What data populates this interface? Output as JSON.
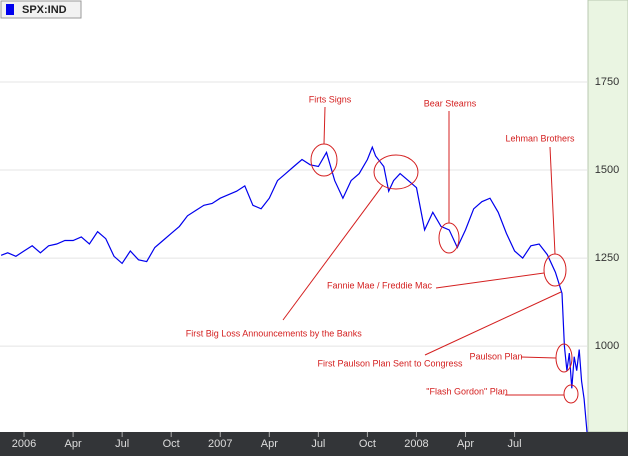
{
  "chart_data": {
    "type": "line",
    "series": [
      {
        "name": "SPX:IND",
        "color": "#0000ee",
        "x": [
          -1.4,
          -1,
          -0.5,
          0,
          0.5,
          1,
          1.5,
          2,
          2.5,
          3,
          3.5,
          4,
          4.5,
          5,
          5.5,
          6,
          6.5,
          7,
          7.5,
          8,
          8.5,
          9,
          9.5,
          10,
          10.5,
          11,
          11.5,
          12,
          12.5,
          13,
          13.5,
          14,
          14.5,
          15,
          15.5,
          16,
          16.5,
          17,
          17.5,
          18,
          18.5,
          19,
          19.5,
          20,
          20.5,
          21,
          21.3,
          21.5,
          22,
          22.3,
          22.6,
          23,
          23.5,
          24,
          24.5,
          25,
          25.5,
          26,
          26.5,
          27,
          27.5,
          28,
          28.5,
          29,
          29.5,
          30,
          30.5,
          31,
          31.5,
          32,
          32.5,
          32.7,
          32.9,
          33.05,
          33.2,
          33.35,
          33.5,
          33.65,
          33.8,
          33.95,
          34.1,
          34.25,
          34.43
        ],
        "values": [
          1258,
          1265,
          1255,
          1270,
          1285,
          1265,
          1285,
          1290,
          1300,
          1300,
          1310,
          1290,
          1325,
          1305,
          1255,
          1235,
          1270,
          1245,
          1240,
          1280,
          1300,
          1320,
          1340,
          1370,
          1385,
          1400,
          1405,
          1420,
          1430,
          1440,
          1455,
          1400,
          1390,
          1420,
          1470,
          1490,
          1510,
          1530,
          1515,
          1510,
          1550,
          1470,
          1420,
          1470,
          1490,
          1530,
          1565,
          1540,
          1510,
          1440,
          1470,
          1490,
          1470,
          1450,
          1330,
          1380,
          1340,
          1330,
          1280,
          1330,
          1390,
          1410,
          1420,
          1380,
          1320,
          1270,
          1250,
          1285,
          1290,
          1260,
          1210,
          1180,
          1150,
          1000,
          930,
          980,
          880,
          970,
          930,
          990,
          900,
          850,
          756
        ]
      }
    ],
    "xlim": [
      -1.47,
      34.43
    ],
    "xticks": [
      {
        "value": 0,
        "label": "2006"
      },
      {
        "value": 3,
        "label": "Apr"
      },
      {
        "value": 6,
        "label": "Jul"
      },
      {
        "value": 9,
        "label": "Oct"
      },
      {
        "value": 12,
        "label": "2007"
      },
      {
        "value": 15,
        "label": "Apr"
      },
      {
        "value": 18,
        "label": "Jul"
      },
      {
        "value": 21,
        "label": "Oct"
      },
      {
        "value": 24,
        "label": "2008"
      },
      {
        "value": 27,
        "label": "Apr"
      },
      {
        "value": 30,
        "label": "Jul"
      }
    ],
    "ylim": [
      756,
      1983
    ],
    "yticks": [
      1000,
      1250,
      1500,
      1750
    ],
    "grid": true,
    "annotations": [
      {
        "text": "Firts Signs"
      },
      {
        "text": "Bear Stearns"
      },
      {
        "text": "Lehman Brothers"
      },
      {
        "text": "Fannie Mae / Freddie Mac"
      },
      {
        "text": "First Big Loss"
      },
      {
        "text": "Announcements by the Banks"
      },
      {
        "text": "First Paulson Plan Sent to Congress"
      },
      {
        "text": "Paulson Plan"
      },
      {
        "text": "\"Flash Gordon\" Plan"
      }
    ]
  }
}
